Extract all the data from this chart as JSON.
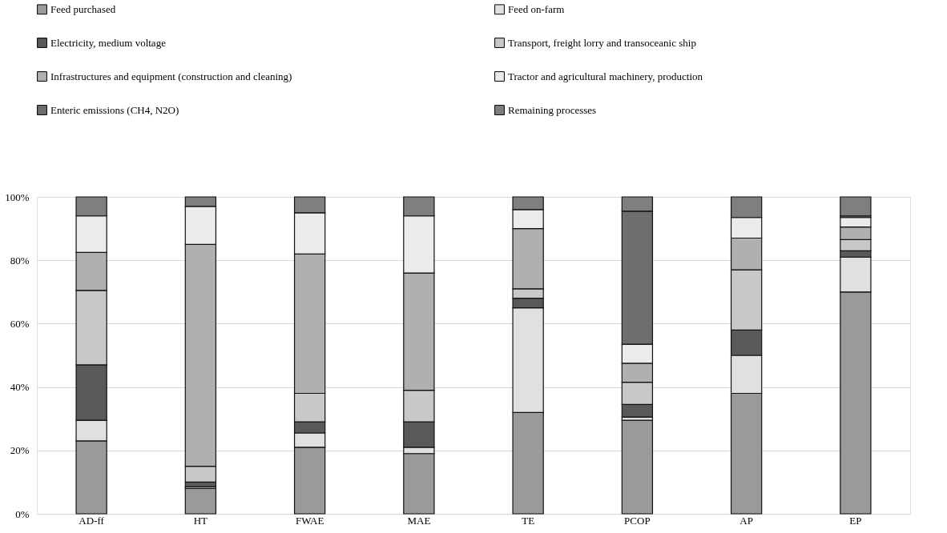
{
  "chart_data": {
    "type": "bar",
    "stacked": true,
    "legend": "top",
    "grid": "y",
    "categories": [
      "AD-ff",
      "HT",
      "FWAE",
      "MAE",
      "TE",
      "PCOP",
      "AP",
      "EP"
    ],
    "ylim": [
      0,
      100
    ],
    "yticks": [
      {
        "value": 0,
        "label": "0%"
      },
      {
        "value": 20,
        "label": "20%"
      },
      {
        "value": 40,
        "label": "40%"
      },
      {
        "value": 60,
        "label": "60%"
      },
      {
        "value": 80,
        "label": "80%"
      },
      {
        "value": 100,
        "label": "100%"
      }
    ],
    "series": [
      {
        "name": "Feed purchased",
        "color": "#9a9a9a",
        "values": [
          23,
          8,
          21,
          19,
          32,
          29.5,
          38,
          70
        ]
      },
      {
        "name": "Feed on-farm",
        "color": "#e0e0e0",
        "values": [
          6.5,
          0.5,
          4.5,
          2,
          33,
          1,
          12,
          11
        ]
      },
      {
        "name": "Electricity, medium voltage",
        "color": "#595959",
        "values": [
          17.5,
          1.5,
          3.5,
          8,
          3,
          4,
          8,
          2
        ]
      },
      {
        "name": "Transport, freight lorry and transoceanic ship",
        "color": "#c8c8c8",
        "values": [
          23.5,
          5,
          9,
          10,
          3,
          7,
          19,
          3.5
        ]
      },
      {
        "name": "Infrastructures and equipment (construction and cleaning)",
        "color": "#b0b0b0",
        "values": [
          12,
          70,
          44,
          37,
          19,
          6,
          10,
          4
        ]
      },
      {
        "name": "Tractor and agricultural machinery, production",
        "color": "#ebebeb",
        "values": [
          11.5,
          12,
          13,
          18,
          6,
          6,
          6.5,
          3
        ]
      },
      {
        "name": "Enteric emissions (CH4, N2O)",
        "color": "#6e6e6e",
        "values": [
          0,
          0,
          0,
          0,
          0,
          42,
          0,
          0.5
        ]
      },
      {
        "name": "Remaining processes",
        "color": "#7f7f7f",
        "values": [
          6,
          3,
          5,
          6,
          4,
          4.5,
          6.5,
          6
        ]
      }
    ]
  }
}
